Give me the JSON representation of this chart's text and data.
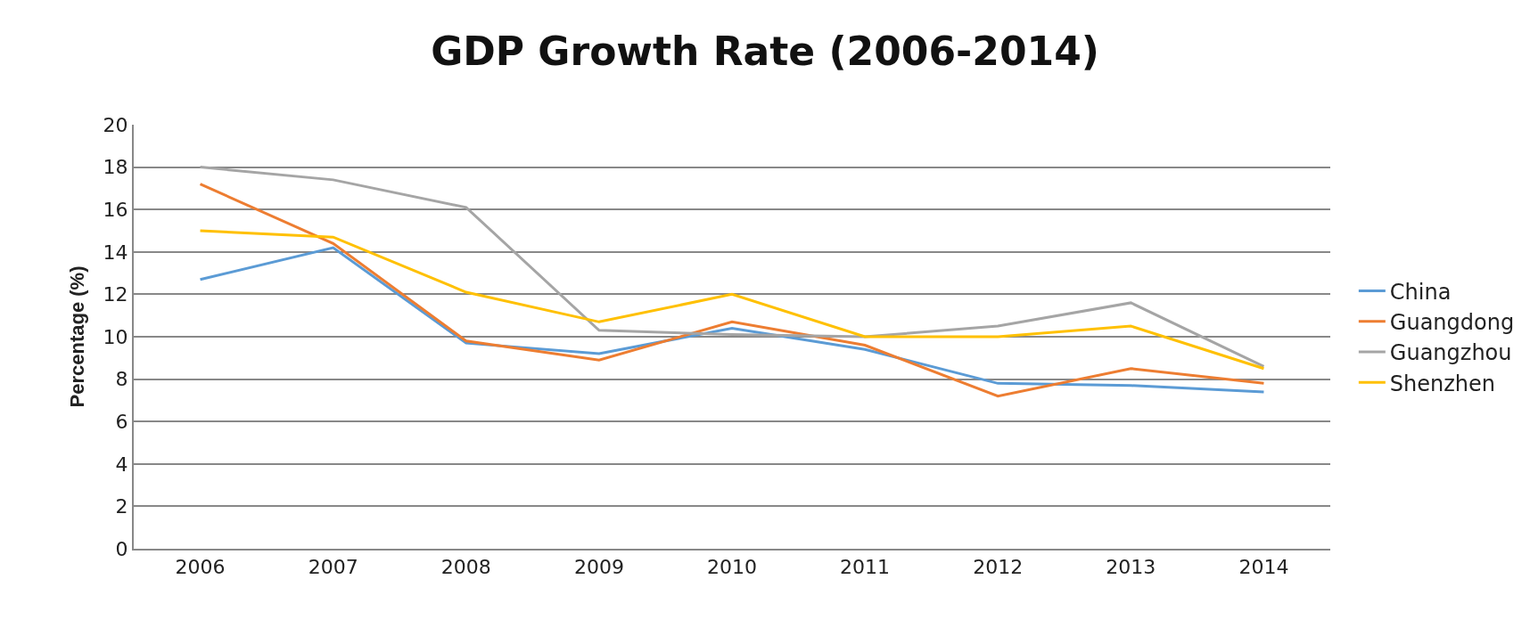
{
  "chart_data": {
    "type": "line",
    "title": "GDP Growth Rate (2006-2014)",
    "ylabel": "Percentage (%)",
    "categories": [
      "2006",
      "2007",
      "2008",
      "2009",
      "2010",
      "2011",
      "2012",
      "2013",
      "2014"
    ],
    "series": [
      {
        "name": "China",
        "color": "#5b9bd5",
        "values": [
          12.7,
          14.2,
          9.7,
          9.2,
          10.4,
          9.4,
          7.8,
          7.7,
          7.4
        ]
      },
      {
        "name": "Guangdong",
        "color": "#ed7d31",
        "values": [
          17.2,
          14.4,
          9.8,
          8.9,
          10.7,
          9.6,
          7.2,
          8.5,
          7.8
        ]
      },
      {
        "name": "Guangzhou",
        "color": "#a5a5a5",
        "values": [
          18.0,
          17.4,
          16.1,
          10.3,
          10.1,
          10.0,
          10.5,
          11.6,
          8.6
        ]
      },
      {
        "name": "Shenzhen",
        "color": "#ffc000",
        "values": [
          15.0,
          14.7,
          12.1,
          10.7,
          12.0,
          10.0,
          10.0,
          10.5,
          8.5
        ]
      }
    ],
    "ylim": [
      0,
      20
    ],
    "yticks": [
      0,
      2,
      4,
      6,
      8,
      10,
      12,
      14,
      16,
      18,
      20
    ],
    "grid": "y",
    "legend": "right",
    "marker": "none",
    "line_style": "solid"
  }
}
